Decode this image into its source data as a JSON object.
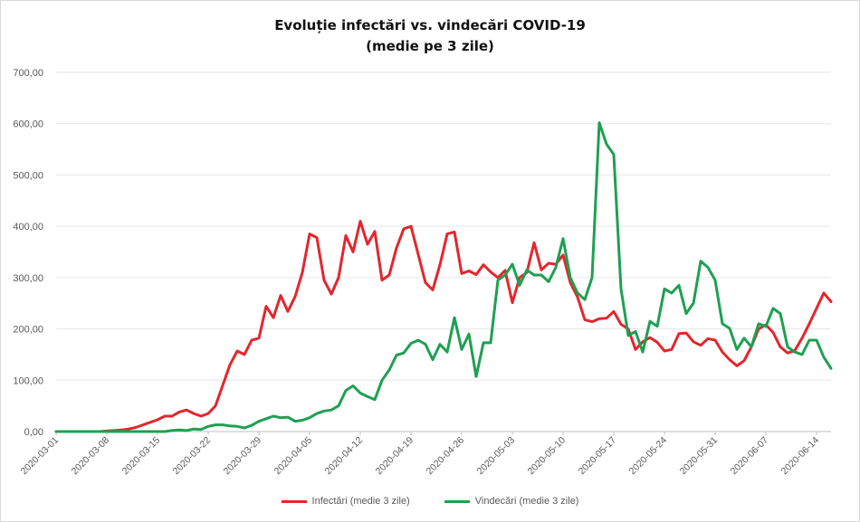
{
  "chart_data": {
    "type": "line",
    "title": "Evoluție infectări vs. vindecări COVID-19",
    "subtitle": "(medie pe 3 zile)",
    "ylim": [
      0,
      700
    ],
    "yticks": [
      "0,00",
      "100,00",
      "200,00",
      "300,00",
      "400,00",
      "500,00",
      "600,00",
      "700,00"
    ],
    "yvalues": [
      0,
      100,
      200,
      300,
      400,
      500,
      600,
      700
    ],
    "xticks": [
      "2020-03-01",
      "2020-03-08",
      "2020-03-15",
      "2020-03-22",
      "2020-03-29",
      "2020-04-05",
      "2020-04-12",
      "2020-04-19",
      "2020-04-26",
      "2020-05-03",
      "2020-05-10",
      "2020-05-17",
      "2020-05-24",
      "2020-05-31",
      "2020-06-07",
      "2020-06-14"
    ],
    "start_date": "2020-03-01",
    "gridlines": true,
    "legend_position": "bottom",
    "series": [
      {
        "name": "Infectări (medie 3 zile)",
        "color": "#e3262d",
        "values": [
          0,
          0,
          0,
          0,
          0,
          0,
          0,
          1,
          2,
          3,
          5,
          8,
          13,
          18,
          23,
          30,
          30,
          38,
          42,
          35,
          30,
          35,
          50,
          90,
          130,
          157,
          150,
          178,
          182,
          244,
          222,
          265,
          234,
          263,
          310,
          385,
          378,
          295,
          268,
          300,
          382,
          350,
          410,
          365,
          390,
          295,
          305,
          358,
          395,
          400,
          345,
          290,
          276,
          325,
          385,
          389,
          308,
          313,
          306,
          325,
          311,
          300,
          314,
          251,
          300,
          310,
          368,
          315,
          328,
          326,
          344,
          290,
          262,
          218,
          214,
          220,
          221,
          234,
          209,
          200,
          160,
          175,
          183,
          174,
          157,
          160,
          191,
          192,
          175,
          168,
          181,
          178,
          155,
          140,
          128,
          138,
          165,
          200,
          208,
          193,
          165,
          153,
          158,
          182,
          210,
          240,
          270,
          253
        ]
      },
      {
        "name": "Vindecări (medie 3 zile)",
        "color": "#1ea052",
        "values": [
          0,
          0,
          0,
          0,
          0,
          0,
          0,
          0,
          0,
          0,
          0,
          0,
          0,
          0,
          0,
          0,
          2,
          3,
          2,
          5,
          4,
          10,
          13,
          13,
          11,
          10,
          7,
          12,
          20,
          25,
          30,
          27,
          28,
          20,
          22,
          27,
          35,
          40,
          42,
          50,
          80,
          89,
          75,
          68,
          62,
          100,
          120,
          149,
          153,
          172,
          178,
          170,
          140,
          170,
          155,
          222,
          160,
          190,
          107,
          173,
          173,
          295,
          305,
          326,
          285,
          315,
          305,
          305,
          292,
          320,
          376,
          300,
          270,
          257,
          300,
          602,
          560,
          540,
          278,
          187,
          195,
          155,
          215,
          205,
          278,
          270,
          285,
          230,
          250,
          332,
          320,
          295,
          210,
          201,
          160,
          182,
          165,
          210,
          205,
          240,
          230,
          165,
          155,
          150,
          178,
          178,
          145,
          123
        ]
      }
    ]
  }
}
